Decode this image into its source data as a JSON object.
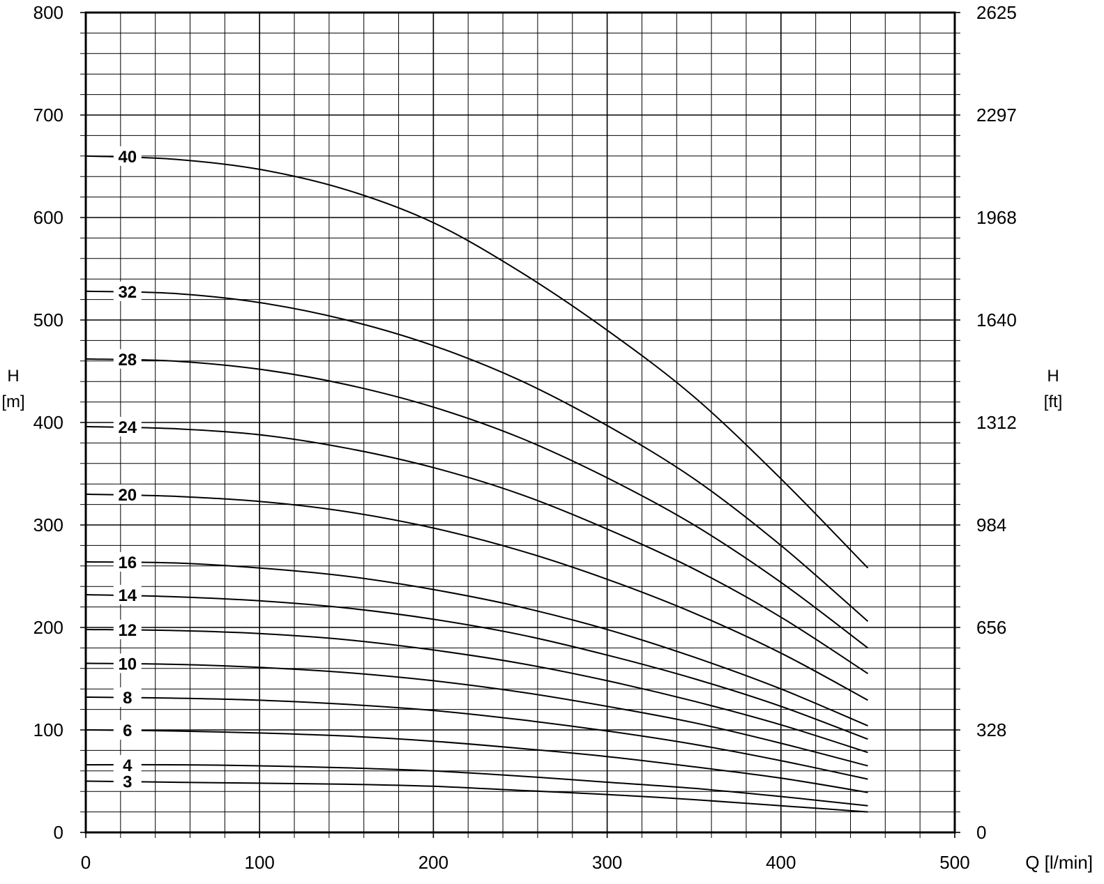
{
  "chart_data": {
    "type": "line",
    "title": "",
    "x_axis": {
      "label": "Q [l/min]",
      "range": [
        0,
        500
      ],
      "ticks": [
        0,
        100,
        200,
        300,
        400,
        500
      ],
      "minor_step": 20
    },
    "y_axis_left": {
      "label_line1": "H",
      "label_line2": "[m]",
      "range": [
        0,
        800
      ],
      "ticks": [
        0,
        100,
        200,
        300,
        400,
        500,
        600,
        700,
        800
      ],
      "minor_step": 20
    },
    "y_axis_right": {
      "label_line1": "H",
      "label_line2": "[ft]",
      "range": [
        0,
        2625
      ],
      "tick_labels": [
        "0",
        "328",
        "656",
        "984",
        "1312",
        "1640",
        "1968",
        "2297",
        "2625"
      ]
    },
    "grid": true,
    "x": [
      0,
      50,
      100,
      150,
      200,
      250,
      300,
      350,
      400,
      450
    ],
    "series": [
      {
        "name": "40",
        "values": [
          660,
          657,
          647,
          627,
          595,
          547,
          490,
          425,
          345,
          258
        ]
      },
      {
        "name": "32",
        "values": [
          528,
          526,
          517,
          500,
          475,
          441,
          397,
          345,
          280,
          206
        ]
      },
      {
        "name": "28",
        "values": [
          462,
          460,
          452,
          437,
          415,
          385,
          346,
          300,
          244,
          180
        ]
      },
      {
        "name": "24",
        "values": [
          396,
          394,
          388,
          375,
          356,
          330,
          296,
          257,
          210,
          155
        ]
      },
      {
        "name": "20",
        "values": [
          330,
          328,
          323,
          313,
          297,
          275,
          247,
          214,
          175,
          129
        ]
      },
      {
        "name": "16",
        "values": [
          264,
          263,
          258,
          250,
          237,
          220,
          198,
          171,
          140,
          104
        ]
      },
      {
        "name": "14",
        "values": [
          232,
          230,
          226,
          219,
          208,
          193,
          173,
          150,
          123,
          91
        ]
      },
      {
        "name": "12",
        "values": [
          198,
          197,
          194,
          188,
          178,
          165,
          148,
          128,
          105,
          78
        ]
      },
      {
        "name": "10",
        "values": [
          165,
          164,
          161,
          156,
          148,
          137,
          123,
          107,
          87,
          65
        ]
      },
      {
        "name": "8",
        "values": [
          132,
          131,
          129,
          125,
          119,
          110,
          99,
          86,
          70,
          52
        ]
      },
      {
        "name": "6",
        "values": [
          100,
          99,
          97,
          94,
          89,
          82,
          74,
          64,
          53,
          39
        ]
      },
      {
        "name": "4",
        "values": [
          66,
          66,
          65,
          63,
          60,
          55,
          49,
          43,
          35,
          26
        ]
      },
      {
        "name": "3",
        "values": [
          50,
          49,
          48,
          47,
          45,
          41,
          37,
          32,
          26,
          20
        ]
      }
    ]
  }
}
